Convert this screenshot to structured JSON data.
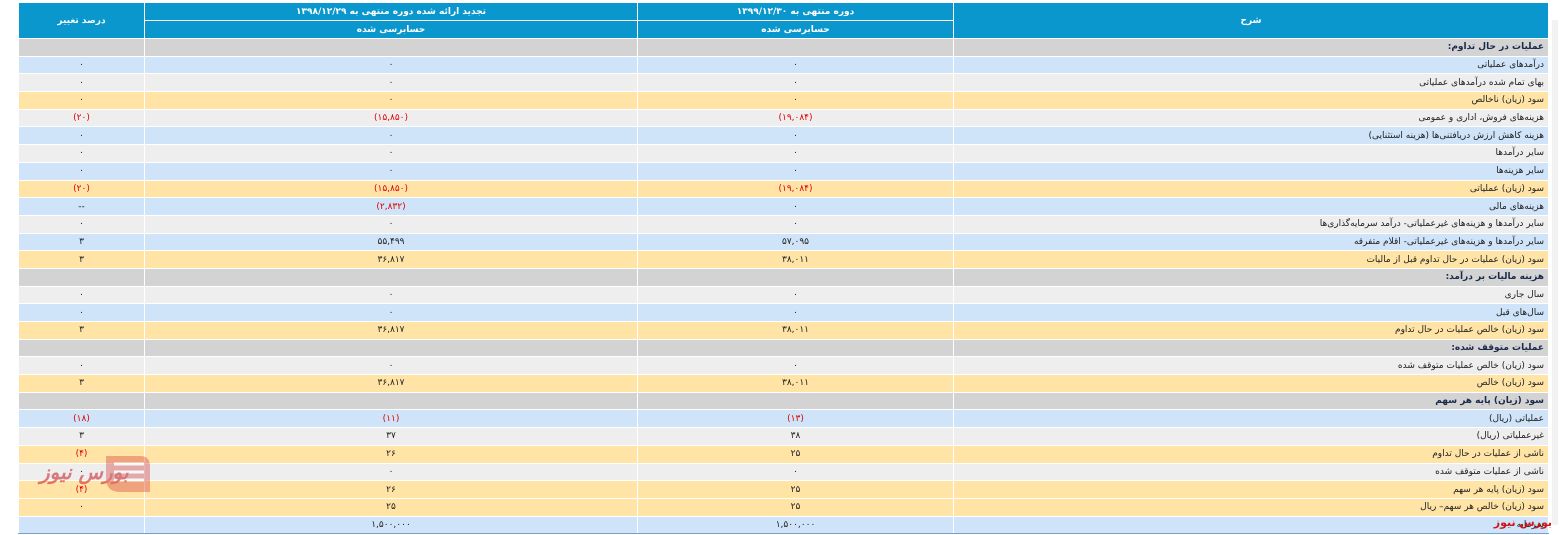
{
  "header": {
    "desc": "شرح",
    "current_period": "دوره منتهی به ۱۳۹۹/۱۲/۳۰",
    "previous_period": "تجدید ارائه شده دوره منتهی به ۱۳۹۸/۱۲/۲۹",
    "change": "درصد تغییر",
    "current_status": "حسابرسی شده",
    "previous_status": "حسابرسی شده"
  },
  "rows": [
    {
      "type": "section",
      "desc": "عملیات در حال تداوم:"
    },
    {
      "type": "blue",
      "desc": "درآمدهای عملیاتی",
      "cur": "۰",
      "prev": "۰",
      "chg": "۰"
    },
    {
      "type": "gray",
      "desc": "بهای تمام شده درآمدهای عملیاتی",
      "cur": "۰",
      "prev": "۰",
      "chg": "۰"
    },
    {
      "type": "gold",
      "desc": "سود (زیان) ناخالص",
      "cur": "۰",
      "prev": "۰",
      "chg": "۰"
    },
    {
      "type": "gray",
      "desc": "هزینه‌های فروش، اداری و عمومی",
      "cur": "(۱۹,۰۸۴)",
      "prev": "(۱۵,۸۵۰)",
      "chg": "(۲۰)",
      "neg": true
    },
    {
      "type": "blue",
      "desc": "هزینه کاهش ارزش دریافتنی‌ها (هزینه استثنایی)",
      "cur": "۰",
      "prev": "۰",
      "chg": "۰"
    },
    {
      "type": "gray",
      "desc": "سایر درآمدها",
      "cur": "۰",
      "prev": "۰",
      "chg": "۰"
    },
    {
      "type": "blue",
      "desc": "سایر هزینه‌ها",
      "cur": "۰",
      "prev": "۰",
      "chg": "۰"
    },
    {
      "type": "gold",
      "desc": "سود (زیان) عملیاتی",
      "cur": "(۱۹,۰۸۴)",
      "prev": "(۱۵,۸۵۰)",
      "chg": "(۲۰)",
      "neg": true
    },
    {
      "type": "blue",
      "desc": "هزینه‌های مالی",
      "cur": "۰",
      "prev": "(۲,۸۳۲)",
      "chg": "--",
      "negPrev": true
    },
    {
      "type": "gray",
      "desc": "سایر درآمدها و هزینه‌های غیرعملیاتی- درآمد سرمایه‌گذاری‌ها",
      "cur": "۰",
      "prev": "۰",
      "chg": "۰"
    },
    {
      "type": "blue",
      "desc": "سایر درآمدها و هزینه‌های غیرعملیاتی- اقلام متفرقه",
      "cur": "۵۷,۰۹۵",
      "prev": "۵۵,۴۹۹",
      "chg": "۳"
    },
    {
      "type": "gold",
      "desc": "سود (زیان) عملیات در حال تداوم قبل از مالیات",
      "cur": "۳۸,۰۱۱",
      "prev": "۳۶,۸۱۷",
      "chg": "۳"
    },
    {
      "type": "section",
      "desc": "هزینه مالیات بر درآمد:"
    },
    {
      "type": "gray",
      "desc": "سال جاری",
      "cur": "۰",
      "prev": "۰",
      "chg": "۰"
    },
    {
      "type": "blue",
      "desc": "سال‌های قبل",
      "cur": "۰",
      "prev": "۰",
      "chg": "۰"
    },
    {
      "type": "gold",
      "desc": "سود (زیان) خالص عملیات در حال تداوم",
      "cur": "۳۸,۰۱۱",
      "prev": "۳۶,۸۱۷",
      "chg": "۳"
    },
    {
      "type": "section",
      "desc": "عملیات متوقف شده:"
    },
    {
      "type": "gray",
      "desc": "سود (زیان) خالص عملیات متوقف شده",
      "cur": "۰",
      "prev": "۰",
      "chg": "۰"
    },
    {
      "type": "gold",
      "desc": "سود (زیان) خالص",
      "cur": "۳۸,۰۱۱",
      "prev": "۳۶,۸۱۷",
      "chg": "۳"
    },
    {
      "type": "section",
      "desc": "سود (زیان) پایه هر سهم"
    },
    {
      "type": "blue",
      "desc": "عملیاتی (ریال)",
      "cur": "(۱۳)",
      "prev": "(۱۱)",
      "chg": "(۱۸)",
      "neg": true
    },
    {
      "type": "gray",
      "desc": "غیرعملیاتی (ریال)",
      "cur": "۳۸",
      "prev": "۳۷",
      "chg": "۳"
    },
    {
      "type": "gold",
      "desc": "ناشی از عملیات در حال تداوم",
      "cur": "۲۵",
      "prev": "۲۶",
      "chg": "(۴)",
      "negChg": true
    },
    {
      "type": "gray",
      "desc": "ناشی از عملیات متوقف شده",
      "cur": "۰",
      "prev": "۰",
      "chg": "۰"
    },
    {
      "type": "gold",
      "desc": "سود (زیان) پایه هر سهم",
      "cur": "۲۵",
      "prev": "۲۶",
      "chg": "(۴)",
      "negChg": true
    },
    {
      "type": "gold",
      "desc": "سود (زیان) خالص هر سهم– ریال",
      "cur": "۲۵",
      "prev": "۲۵",
      "chg": "۰"
    },
    {
      "type": "blue",
      "desc": "سرمایه",
      "cur": "۱,۵۰۰,۰۰۰",
      "prev": "۱,۵۰۰,۰۰۰",
      "chg": ""
    }
  ],
  "watermark": "بورس نیوز",
  "site_name": "بورس نیوز"
}
